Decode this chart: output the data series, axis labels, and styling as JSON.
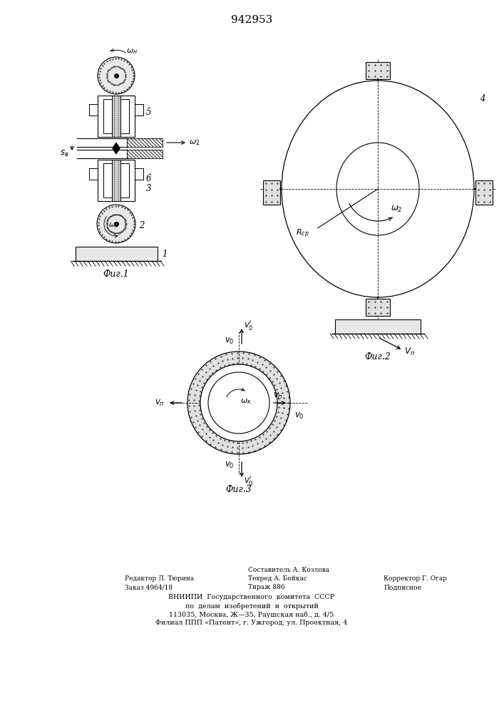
{
  "title": "942953",
  "title_fontsize": 11,
  "fig1_label": "Фиг.1",
  "fig2_label": "Фиг.2",
  "fig3_label": "Фиг.3",
  "line_color": "#000000",
  "bg_color": "#ffffff",
  "footer_col1_line1": "Редактор Л. Тюрина",
  "footer_col1_line2": "Заказ 4964/18",
  "footer_col2_line1": "Составитель А. Козлова",
  "footer_col2_line2": "Техред А. Бойкас",
  "footer_col2_line3": "Тираж 886",
  "footer_col3_line1": "Корректор Г. Огар",
  "footer_col3_line2": "Подписное",
  "footer_vniip1": "ВНИИПИ  Государственного  комитета  СССР",
  "footer_vniip2": "по  делам  изобретений  и  открытий",
  "footer_vniip3": "113035, Москва, Ж—35, Раушская наб., д. 4/5",
  "footer_vniip4": "Филиал ППП «Патент», г. Ужгород, ул. Проектная, 4"
}
